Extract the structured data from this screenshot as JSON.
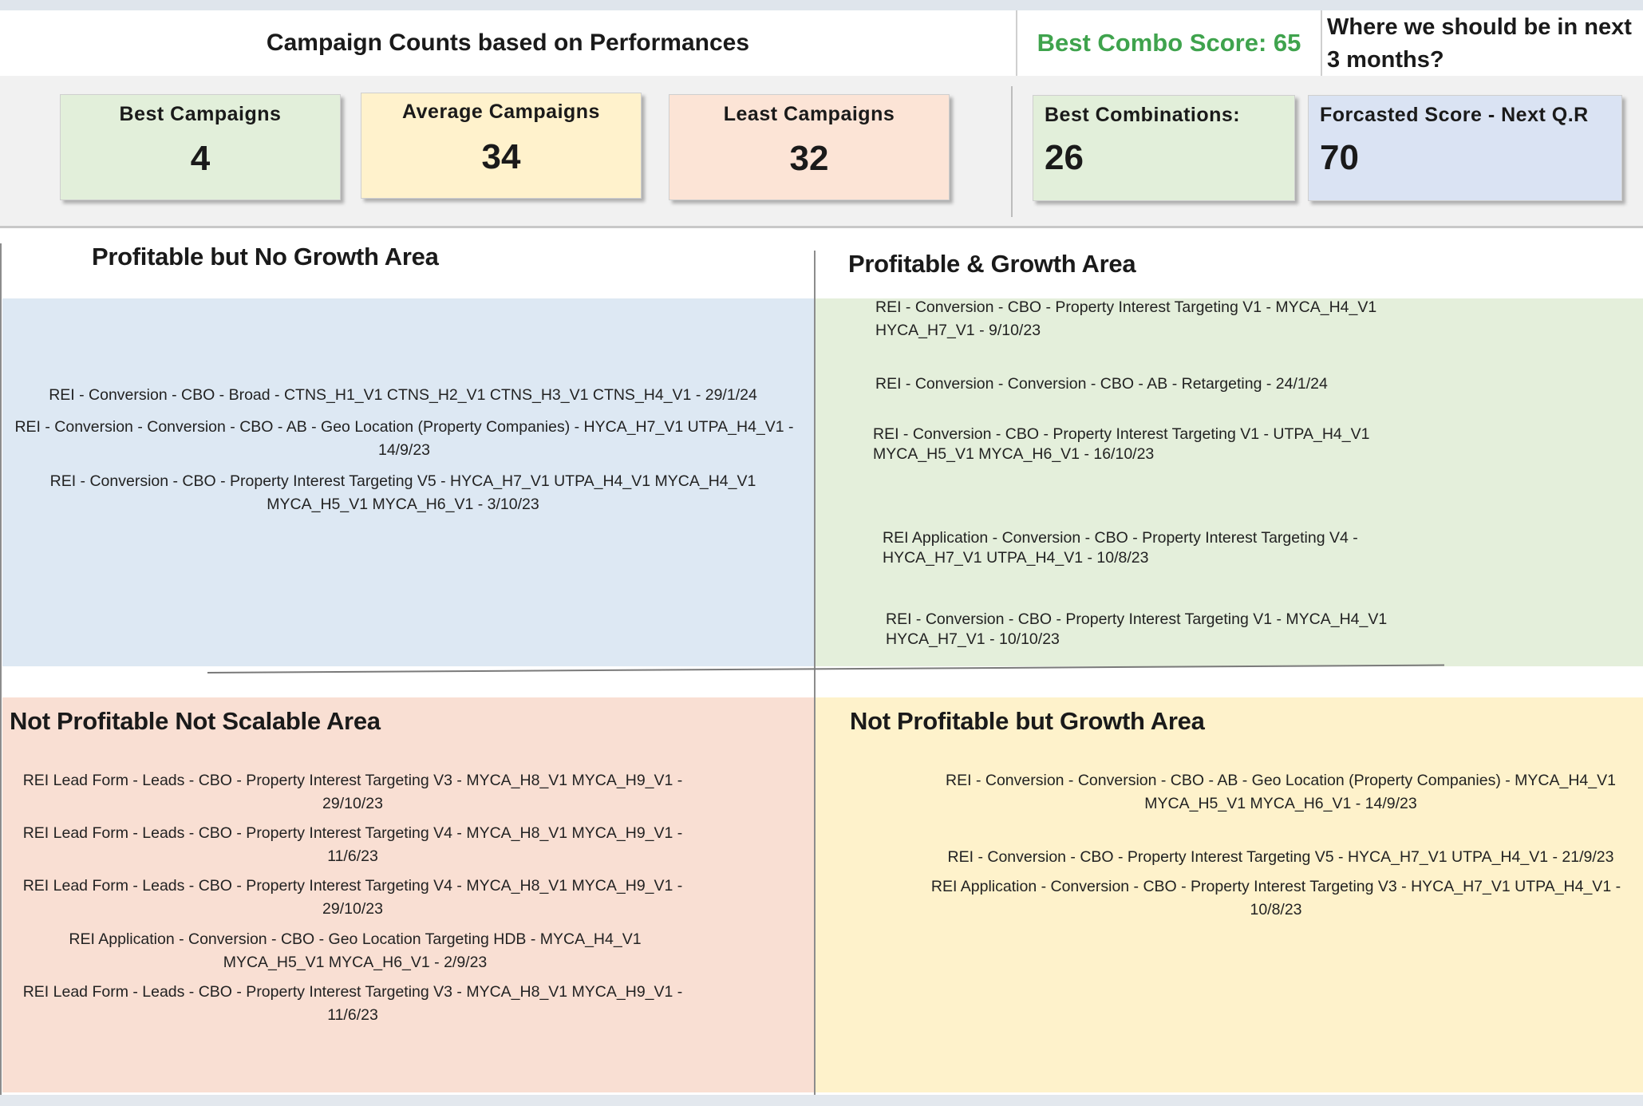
{
  "header": {
    "title": "Campaign Counts based on Performances",
    "best_combo_score": "Best Combo Score: 65",
    "question_line1": "Where we should be in next",
    "question_line2": "3 months?"
  },
  "kpis": {
    "best_campaigns": {
      "label": "Best Campaigns",
      "value": "4"
    },
    "average_campaigns": {
      "label": "Average Campaigns",
      "value": "34"
    },
    "least_campaigns": {
      "label": "Least Campaigns",
      "value": "32"
    },
    "best_combinations": {
      "label": "Best Combinations:",
      "value": "26"
    },
    "forecasted_score": {
      "label": "Forcasted Score - Next Q.R",
      "value": "70"
    }
  },
  "colors": {
    "green": "#e2efda",
    "yellow": "#fff2cc",
    "peach": "#fce4d6",
    "blue": "#dae3f3",
    "combo_text": "#3fa34d"
  },
  "quadrants": {
    "profitable_no_growth": {
      "title": "Profitable but No Growth Area",
      "items": [
        "REI - Conversion - CBO -  Broad -  CTNS_H1_V1 CTNS_H2_V1 CTNS_H3_V1 CTNS_H4_V1 - 29/1/24",
        "REI - Conversion - Conversion - CBO - AB - Geo Location (Property Companies) - HYCA_H7_V1 UTPA_H4_V1 - 14/9/23",
        "REI - Conversion - CBO -  Property Interest Targeting V5 - HYCA_H7_V1 UTPA_H4_V1  MYCA_H4_V1 MYCA_H5_V1 MYCA_H6_V1 - 3/10/23"
      ]
    },
    "profitable_growth": {
      "title": "Profitable & Growth Area",
      "items": [
        "REI - Conversion - CBO -  Property Interest Targeting V1 - MYCA_H4_V1 HYCA_H7_V1 - 9/10/23",
        "REI - Conversion - Conversion - CBO - AB - Retargeting - 24/1/24",
        "REI - Conversion - CBO -  Property Interest Targeting V1 - UTPA_H4_V1 MYCA_H5_V1 MYCA_H6_V1 - 16/10/23",
        "REI Application - Conversion - CBO -  Property Interest Targeting V4 - HYCA_H7_V1 UTPA_H4_V1 - 10/8/23",
        "REI - Conversion - CBO -  Property Interest Targeting V1 - MYCA_H4_V1 HYCA_H7_V1 - 10/10/23"
      ]
    },
    "not_profitable_not_scalable": {
      "title": "Not Profitable Not Scalable Area",
      "items": [
        "REI Lead Form - Leads - CBO -  Property Interest Targeting V3 -  MYCA_H8_V1 MYCA_H9_V1 - 29/10/23",
        "REI Lead Form - Leads - CBO -  Property Interest Targeting V4 -  MYCA_H8_V1 MYCA_H9_V1 - 11/6/23",
        "REI Lead Form - Leads - CBO -  Property Interest Targeting V4 -  MYCA_H8_V1 MYCA_H9_V1 - 29/10/23",
        "REI Application - Conversion - CBO -  Geo Location Targeting HDB - MYCA_H4_V1 MYCA_H5_V1 MYCA_H6_V1 - 2/9/23",
        "REI Lead Form - Leads - CBO -  Property Interest Targeting V3 -  MYCA_H8_V1 MYCA_H9_V1 - 11/6/23"
      ]
    },
    "not_profitable_growth": {
      "title": "Not Profitable but Growth Area",
      "items": [
        "REI - Conversion - Conversion - CBO - AB - Geo Location (Property Companies) - MYCA_H4_V1 MYCA_H5_V1 MYCA_H6_V1 - 14/9/23",
        "REI - Conversion - CBO -  Property Interest Targeting V5 - HYCA_H7_V1 UTPA_H4_V1 - 21/9/23",
        "REI Application - Conversion - CBO -  Property Interest Targeting V3 - HYCA_H7_V1 UTPA_H4_V1 - 10/8/23"
      ]
    }
  }
}
